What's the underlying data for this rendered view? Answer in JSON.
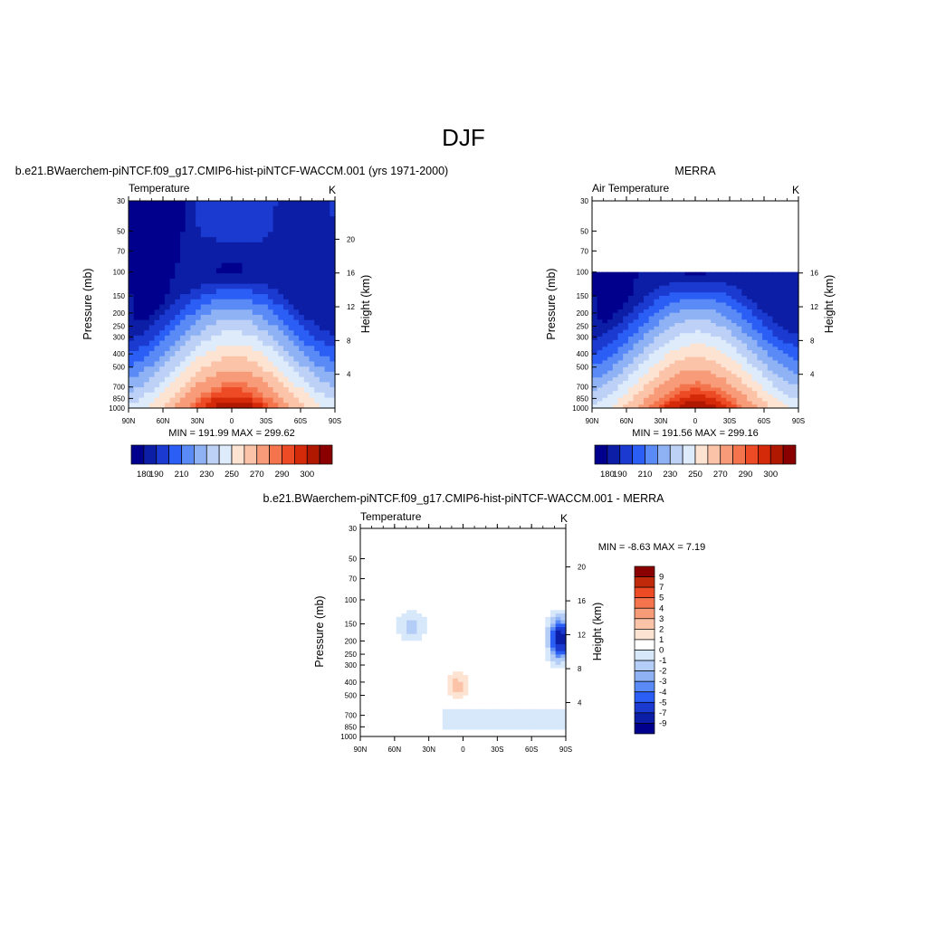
{
  "page_title": "DJF",
  "chart_data": [
    {
      "type": "heatmap",
      "id": "model",
      "title": "b.e21.BWaerchem-piNTCF.f09_g17.CMIP6-hist-piNTCF-WACCM.001 (yrs 1971-2000)",
      "left_label": "Temperature",
      "units_label": "K",
      "ylabel": "Pressure (mb)",
      "ylabel_right": "Height (km)",
      "x_ticks": [
        "90N",
        "60N",
        "30N",
        "0",
        "30S",
        "60S",
        "90S"
      ],
      "y_ticks": [
        "30",
        "50",
        "70",
        "100",
        "150",
        "200",
        "250",
        "300",
        "400",
        "500",
        "700",
        "850",
        "1000"
      ],
      "height_ticks": [
        "4",
        "8",
        "12",
        "16",
        "20"
      ],
      "minmax": "MIN = 191.99  MAX = 299.62",
      "colorbar_labels": [
        "180",
        "190",
        "210",
        "230",
        "250",
        "270",
        "290",
        "300"
      ],
      "data_top_pressure": 30
    },
    {
      "type": "heatmap",
      "id": "obs",
      "title": "MERRA",
      "left_label": "Air Temperature",
      "units_label": "K",
      "ylabel": "Pressure (mb)",
      "ylabel_right": "Height (km)",
      "x_ticks": [
        "90N",
        "60N",
        "30N",
        "0",
        "30S",
        "60S",
        "90S"
      ],
      "y_ticks": [
        "30",
        "50",
        "70",
        "100",
        "150",
        "200",
        "250",
        "300",
        "400",
        "500",
        "700",
        "850",
        "1000"
      ],
      "height_ticks": [
        "4",
        "8",
        "12",
        "16"
      ],
      "minmax": "MIN = 191.56  MAX = 299.16",
      "colorbar_labels": [
        "180",
        "190",
        "210",
        "230",
        "250",
        "270",
        "290",
        "300"
      ],
      "data_top_pressure": 100
    },
    {
      "type": "heatmap",
      "id": "diff",
      "title": "b.e21.BWaerchem-piNTCF.f09_g17.CMIP6-hist-piNTCF-WACCM.001 - MERRA",
      "left_label": "Temperature",
      "units_label": "K",
      "ylabel": "Pressure (mb)",
      "ylabel_right": "Height (km)",
      "x_ticks": [
        "90N",
        "60N",
        "30N",
        "0",
        "30S",
        "60S",
        "90S"
      ],
      "y_ticks": [
        "30",
        "50",
        "70",
        "100",
        "150",
        "200",
        "250",
        "300",
        "400",
        "500",
        "700",
        "850",
        "1000"
      ],
      "height_ticks": [
        "4",
        "8",
        "12",
        "16",
        "20"
      ],
      "minmax": "MIN =  -8.63  MAX =   7.19",
      "colorbar_labels": [
        "9",
        "7",
        "5",
        "4",
        "3",
        "2",
        "1",
        "0",
        "-1",
        "-2",
        "-3",
        "-4",
        "-5",
        "-7",
        "-9"
      ],
      "data_top_pressure": 100
    }
  ],
  "colors": {
    "abs_palette": [
      "#00008c",
      "#0c1ea5",
      "#1a3ad0",
      "#2a5ef5",
      "#5a8af5",
      "#8fb2f5",
      "#bdd1f7",
      "#deebfb",
      "#fde3d2",
      "#fbc3a8",
      "#f79b78",
      "#f4744d",
      "#ed4b25",
      "#d52a0a",
      "#b01800",
      "#8a0000"
    ],
    "diff_palette": [
      "#8a0000",
      "#c02a0a",
      "#ed4b25",
      "#f4744d",
      "#f79b78",
      "#fbc3a8",
      "#fde3d2",
      "#ffffff",
      "#d7e8fb",
      "#b3cdf7",
      "#8fb2f5",
      "#5a8af5",
      "#2a5ef5",
      "#1a3ad0",
      "#0c1ea5",
      "#00008c"
    ]
  }
}
